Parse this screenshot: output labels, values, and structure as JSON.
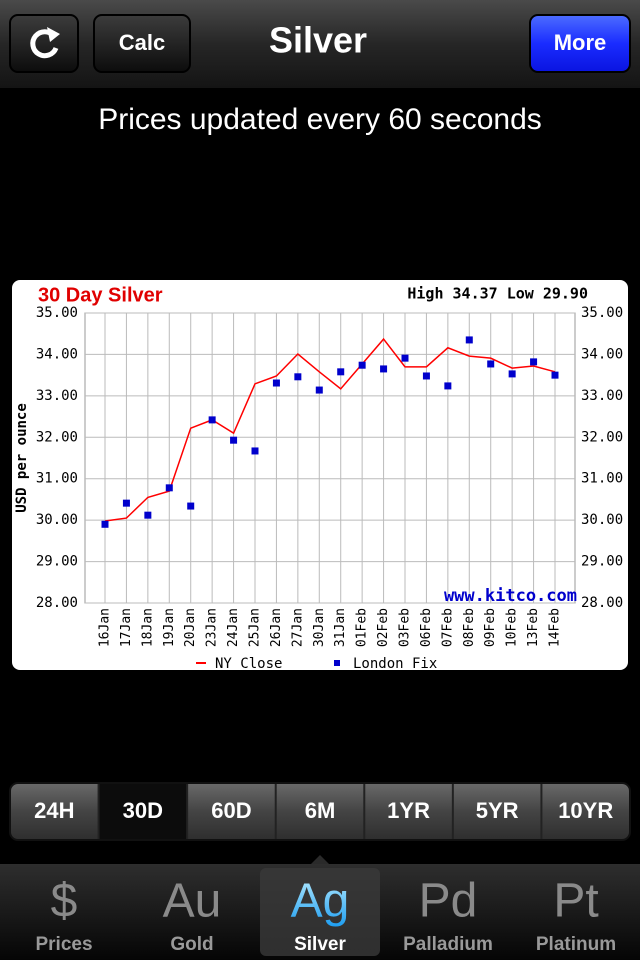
{
  "nav": {
    "title": "Silver",
    "left_button": "Calc",
    "right_button": "More"
  },
  "status": "Prices updated every 60 seconds",
  "chart_data": {
    "type": "line",
    "title": "30 Day Silver",
    "annotation": "High 34.37 Low 29.90",
    "source": "www.kitco.com",
    "y_label": "USD per ounce",
    "categories": [
      "16Jan",
      "17Jan",
      "18Jan",
      "19Jan",
      "20Jan",
      "23Jan",
      "24Jan",
      "25Jan",
      "26Jan",
      "27Jan",
      "30Jan",
      "31Jan",
      "01Feb",
      "02Feb",
      "03Feb",
      "06Feb",
      "07Feb",
      "08Feb",
      "09Feb",
      "10Feb",
      "13Feb",
      "14Feb"
    ],
    "series": [
      {
        "name": "NY Close",
        "color": "#ff0000",
        "style": "line",
        "values": [
          29.98,
          30.05,
          30.55,
          30.7,
          32.22,
          32.42,
          32.1,
          33.29,
          33.48,
          34.01,
          33.58,
          33.17,
          33.77,
          34.37,
          33.7,
          33.7,
          34.16,
          33.96,
          33.91,
          33.67,
          33.72,
          33.58
        ]
      },
      {
        "name": "London Fix",
        "color": "#0000cc",
        "style": "markers",
        "values": [
          29.9,
          30.41,
          30.12,
          30.78,
          30.34,
          32.42,
          31.93,
          31.67,
          33.31,
          33.46,
          33.14,
          33.58,
          33.74,
          33.65,
          33.91,
          33.48,
          33.24,
          34.35,
          33.77,
          33.53,
          33.82,
          33.5
        ]
      }
    ],
    "ylim": [
      28,
      35
    ],
    "yticks": [
      {
        "value": 28,
        "label": "28.00"
      },
      {
        "value": 29,
        "label": "29.00"
      },
      {
        "value": 30,
        "label": "30.00"
      },
      {
        "value": 31,
        "label": "31.00"
      },
      {
        "value": 32,
        "label": "32.00"
      },
      {
        "value": 33,
        "label": "33.00"
      },
      {
        "value": 34,
        "label": "34.00"
      },
      {
        "value": 35,
        "label": "35.00"
      }
    ],
    "grid": true
  },
  "range_tabs": {
    "items": [
      "24H",
      "30D",
      "60D",
      "6M",
      "1YR",
      "5YR",
      "10YR"
    ],
    "selected": 1
  },
  "tab_bar": {
    "items": [
      {
        "icon": "$",
        "label": "Prices"
      },
      {
        "icon": "Au",
        "label": "Gold"
      },
      {
        "icon": "Ag",
        "label": "Silver"
      },
      {
        "icon": "Pd",
        "label": "Palladium"
      },
      {
        "icon": "Pt",
        "label": "Platinum"
      }
    ],
    "selected": 2
  }
}
